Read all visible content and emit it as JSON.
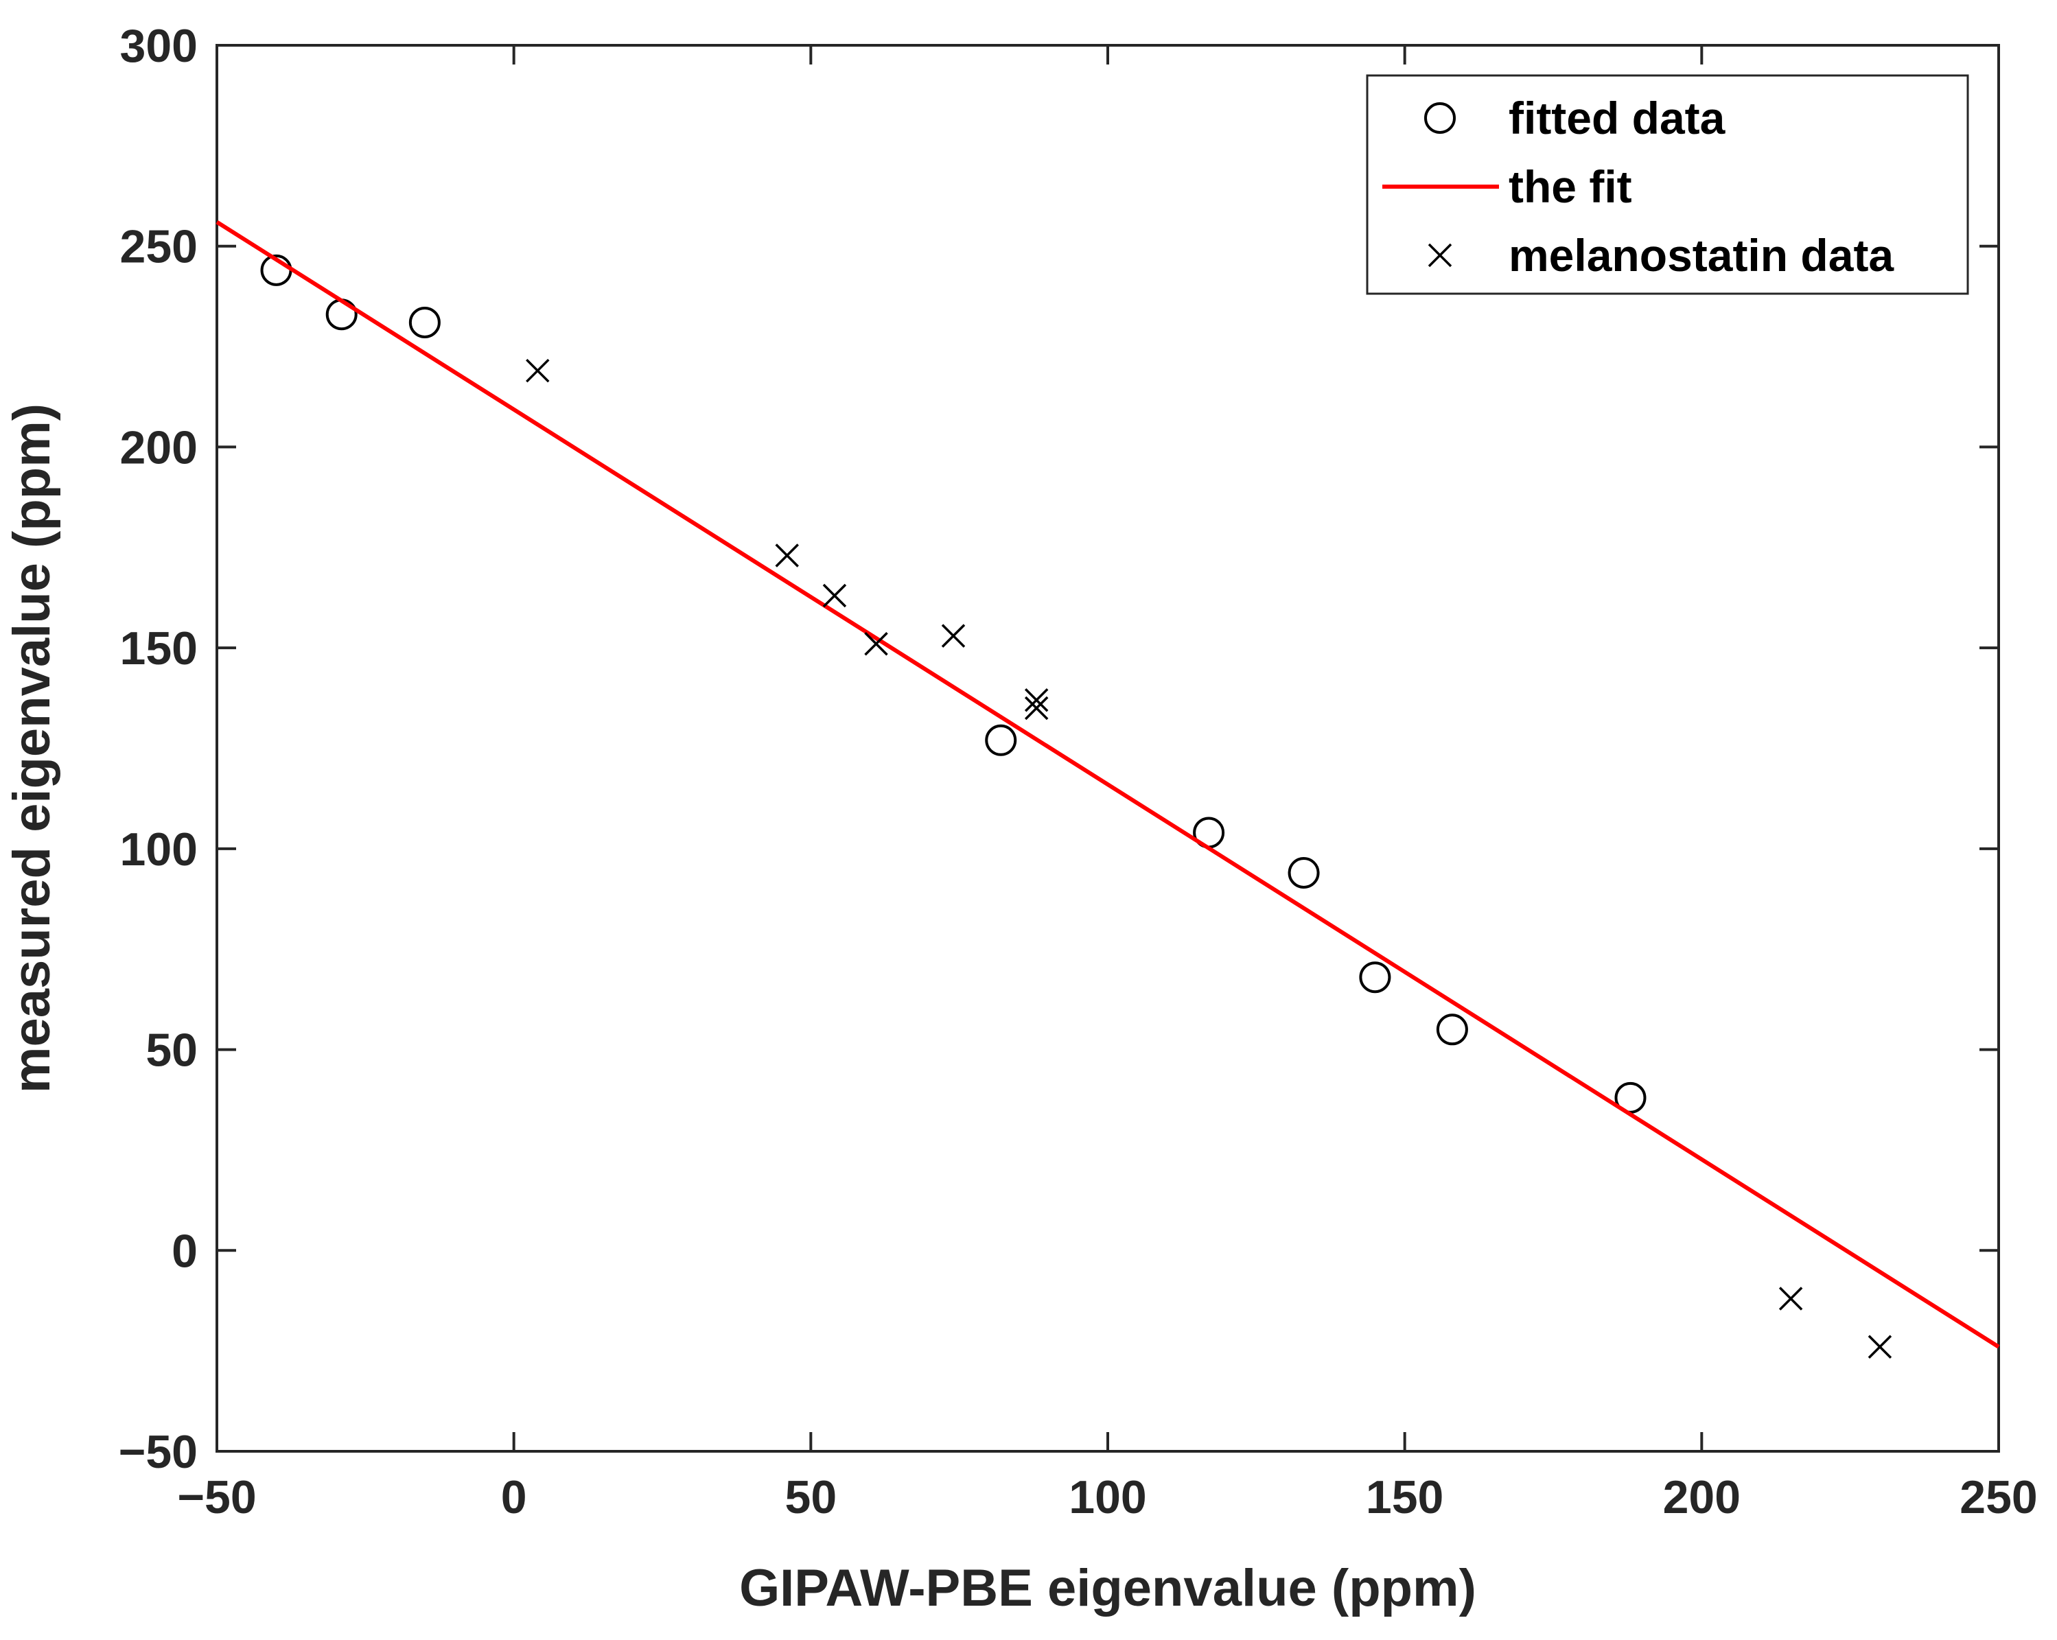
{
  "chart_data": {
    "type": "scatter",
    "xlabel": "GIPAW-PBE eigenvalue (ppm)",
    "ylabel": "measured eigenvalue (ppm)",
    "xlim": [
      -50,
      250
    ],
    "ylim": [
      -50,
      300
    ],
    "xticks": [
      -50,
      0,
      50,
      100,
      150,
      200,
      250
    ],
    "yticks": [
      -50,
      0,
      50,
      100,
      150,
      200,
      250,
      300
    ],
    "xtick_labels": [
      "−50",
      "0",
      "50",
      "100",
      "150",
      "200",
      "250"
    ],
    "ytick_labels": [
      "−50",
      "0",
      "50",
      "100",
      "150",
      "200",
      "250",
      "300"
    ],
    "grid": false,
    "legend_position": "top-right",
    "series": [
      {
        "name": "fitted data",
        "marker": "circle",
        "color": "#000000",
        "points": [
          [
            -40,
            244
          ],
          [
            -29,
            233
          ],
          [
            -15,
            231
          ],
          [
            82,
            127
          ],
          [
            117,
            104
          ],
          [
            133,
            94
          ],
          [
            145,
            68
          ],
          [
            158,
            55
          ],
          [
            188,
            38
          ]
        ]
      },
      {
        "name": "the fit",
        "marker": "line",
        "color": "#ff0000",
        "points": [
          [
            -50,
            256
          ],
          [
            250,
            -24
          ]
        ]
      },
      {
        "name": "melanostatin data",
        "marker": "x",
        "color": "#000000",
        "points": [
          [
            4,
            219
          ],
          [
            46,
            173
          ],
          [
            54,
            163
          ],
          [
            61,
            151
          ],
          [
            74,
            153
          ],
          [
            88,
            137
          ],
          [
            88,
            135
          ],
          [
            215,
            -12
          ],
          [
            230,
            -24
          ]
        ]
      }
    ]
  }
}
